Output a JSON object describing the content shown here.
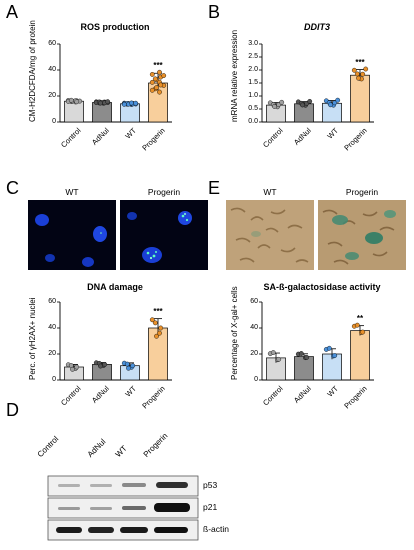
{
  "colors": {
    "control": "#d9d9d9",
    "adnul": "#8c8c8c",
    "wt": "#c7dff5",
    "wt_dots": "#4a90d9",
    "progerin": "#f8cf9c",
    "progerin_dots": "#e8902a"
  },
  "chart_data": [
    {
      "panel": "A",
      "type": "bar",
      "title": "ROS production",
      "ylabel": "CM-H2DCFDA/mg of protein",
      "categories": [
        "Control",
        "AdNul",
        "WT",
        "Progerin"
      ],
      "values": [
        16,
        15,
        14,
        30
      ],
      "ylim": [
        0,
        60
      ],
      "yticks": [
        0,
        20,
        40,
        60
      ],
      "significance": [
        "",
        "",
        "",
        "***"
      ]
    },
    {
      "panel": "B",
      "type": "bar",
      "title": "DDIT3",
      "ylabel": "mRNA relative expression",
      "categories": [
        "Control",
        "AdNul",
        "WT",
        "Progerin"
      ],
      "values": [
        0.65,
        0.7,
        0.72,
        1.8
      ],
      "ylim": [
        0,
        3.0
      ],
      "yticks": [
        0.0,
        0.5,
        1.0,
        1.5,
        2.0,
        2.5,
        3.0
      ],
      "significance": [
        "",
        "",
        "",
        "***"
      ]
    },
    {
      "panel": "C",
      "type": "bar",
      "title": "DNA damage",
      "ylabel": "Perc. of γH2AX+ nuclei",
      "categories": [
        "Control",
        "AdNul",
        "WT",
        "Progerin"
      ],
      "values": [
        10,
        12,
        11,
        40
      ],
      "ylim": [
        0,
        60
      ],
      "yticks": [
        0,
        20,
        40,
        60
      ],
      "significance": [
        "",
        "",
        "",
        "***"
      ]
    },
    {
      "panel": "E",
      "type": "bar",
      "title": "SA-ß-galactosidase activity",
      "ylabel": "Percentage of X-gal+ cells",
      "categories": [
        "Control",
        "AdNul",
        "WT",
        "Progerin"
      ],
      "values": [
        17,
        18,
        20,
        38
      ],
      "ylim": [
        0,
        60
      ],
      "yticks": [
        0,
        20,
        40,
        60
      ],
      "significance": [
        "",
        "",
        "",
        "**"
      ]
    }
  ],
  "panels": {
    "a_letter": "A",
    "b_letter": "B",
    "c_letter": "C",
    "d_letter": "D",
    "e_letter": "E",
    "c_img_left": "WT",
    "c_img_right": "Progerin",
    "e_img_left": "WT",
    "e_img_right": "Progerin"
  },
  "blot": {
    "lanes": [
      "Control",
      "AdNul",
      "WT",
      "Progerin"
    ],
    "bands": [
      "p53",
      "p21",
      "ß-actin"
    ]
  }
}
